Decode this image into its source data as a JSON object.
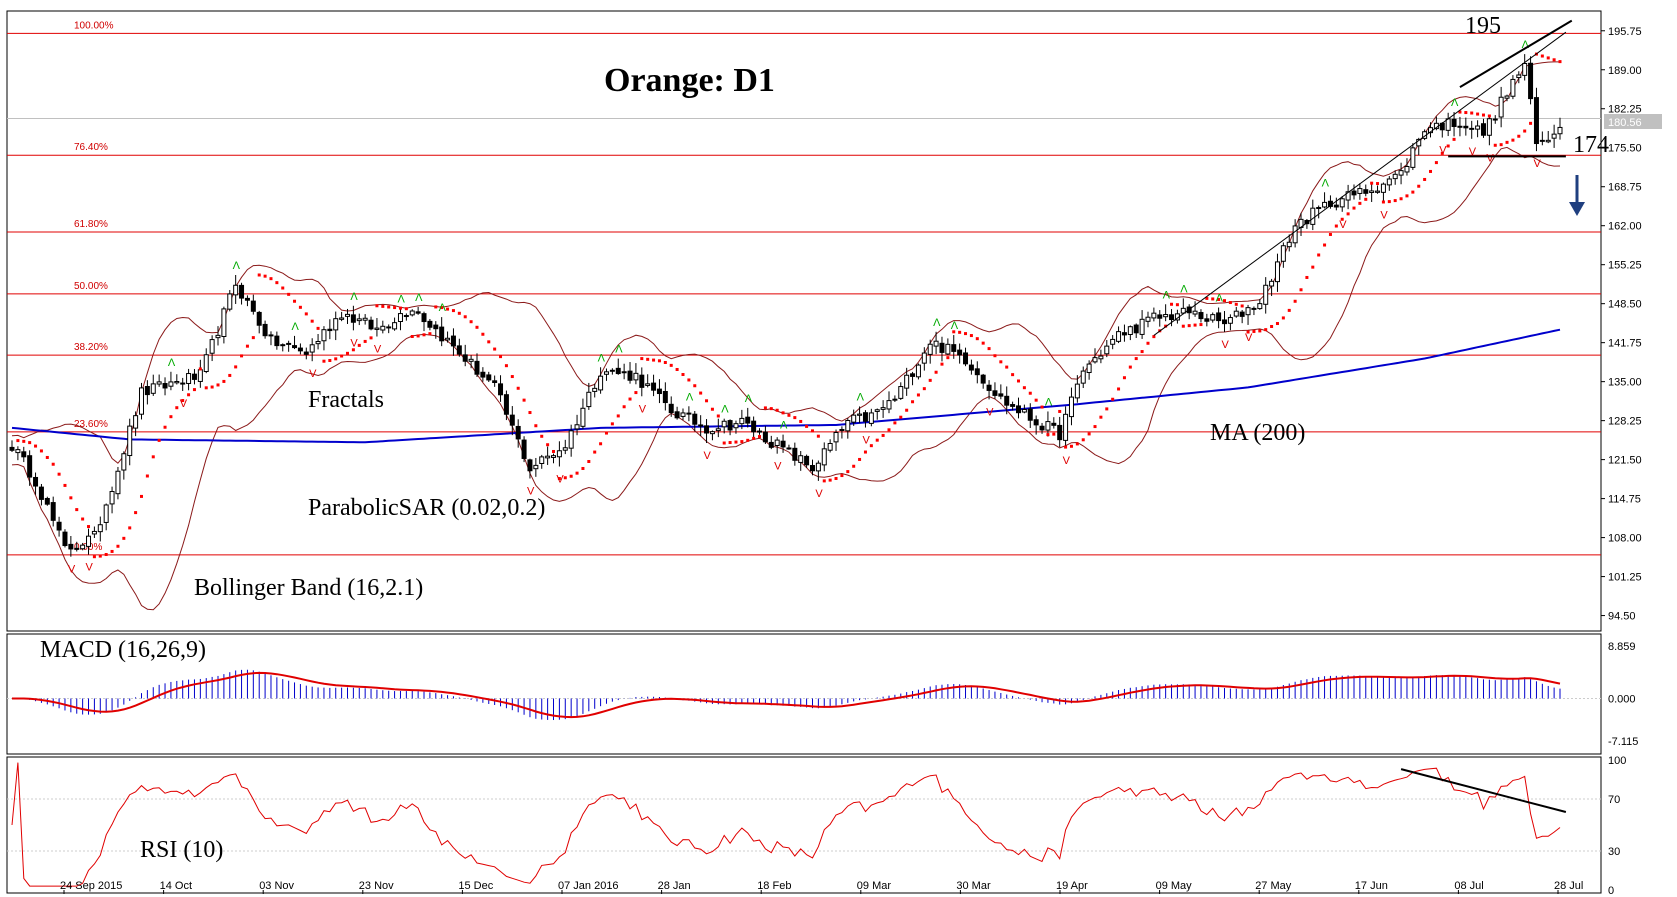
{
  "chart_data": {
    "type": "candlestick",
    "title": "Orange: D1",
    "main_panel": {
      "ylim": [
        92.0,
        199.0
      ],
      "y_ticks": [
        "195.75",
        "189.00",
        "182.25",
        "175.50",
        "168.75",
        "162.00",
        "155.25",
        "148.50",
        "141.75",
        "135.00",
        "128.25",
        "121.50",
        "114.75",
        "108.00",
        "101.25",
        "94.50"
      ],
      "current_price_label": "180.56",
      "current_price": 180.56,
      "fibonacci_levels": [
        {
          "label": "100.00%",
          "price": 195.3
        },
        {
          "label": "76.40%",
          "price": 174.2
        },
        {
          "label": "61.80%",
          "price": 160.9
        },
        {
          "label": "50.00%",
          "price": 150.2
        },
        {
          "label": "38.20%",
          "price": 139.6
        },
        {
          "label": "23.60%",
          "price": 126.3
        },
        {
          "label": "0.00%",
          "price": 105.0
        }
      ],
      "annotations": [
        {
          "text": "195",
          "role": "resistance label"
        },
        {
          "text": "174",
          "role": "support label"
        },
        {
          "text": "Fractals",
          "role": "indicator label"
        },
        {
          "text": "ParabolicSAR (0.02,0.2)",
          "role": "indicator label"
        },
        {
          "text": "Bollinger Band (16,2.1)",
          "role": "indicator label"
        },
        {
          "text": "MA (200)",
          "role": "indicator label"
        }
      ]
    },
    "x_ticks": [
      "24 Sep 2015",
      "14 Oct",
      "03 Nov",
      "23 Nov",
      "15 Dec",
      "07 Jan 2016",
      "28 Jan",
      "18 Feb",
      "09 Mar",
      "30 Mar",
      "19 Apr",
      "09 May",
      "27 May",
      "17 Jun",
      "08 Jul",
      "28 Jul"
    ],
    "close_anchors": [
      [
        0,
        124
      ],
      [
        4,
        118
      ],
      [
        9,
        106
      ],
      [
        14,
        108
      ],
      [
        18,
        120
      ],
      [
        22,
        133
      ],
      [
        28,
        135
      ],
      [
        32,
        136
      ],
      [
        38,
        152
      ],
      [
        44,
        142
      ],
      [
        50,
        140
      ],
      [
        56,
        147
      ],
      [
        62,
        144
      ],
      [
        68,
        148
      ],
      [
        74,
        142
      ],
      [
        82,
        134
      ],
      [
        88,
        120
      ],
      [
        94,
        124
      ],
      [
        100,
        137
      ],
      [
        106,
        136
      ],
      [
        112,
        130
      ],
      [
        118,
        127
      ],
      [
        124,
        128
      ],
      [
        130,
        124
      ],
      [
        136,
        120
      ],
      [
        142,
        128
      ],
      [
        146,
        129
      ],
      [
        150,
        132
      ],
      [
        156,
        142
      ],
      [
        162,
        139
      ],
      [
        168,
        132
      ],
      [
        174,
        128
      ],
      [
        178,
        126
      ],
      [
        182,
        137
      ],
      [
        188,
        143
      ],
      [
        194,
        146
      ],
      [
        200,
        147
      ],
      [
        206,
        145
      ],
      [
        212,
        149
      ],
      [
        218,
        162
      ],
      [
        224,
        166
      ],
      [
        230,
        168
      ],
      [
        236,
        171
      ],
      [
        240,
        179
      ],
      [
        246,
        180
      ],
      [
        250,
        178
      ],
      [
        254,
        185
      ],
      [
        257,
        190
      ],
      [
        259,
        176
      ],
      [
        261,
        177
      ],
      [
        263,
        180
      ]
    ],
    "ma200_anchors": [
      [
        0,
        127
      ],
      [
        20,
        125
      ],
      [
        60,
        124.5
      ],
      [
        100,
        127
      ],
      [
        140,
        127.5
      ],
      [
        180,
        131
      ],
      [
        210,
        134
      ],
      [
        240,
        139
      ],
      [
        263,
        144
      ]
    ],
    "parabolic_sar": {
      "step": 0.02,
      "max": 0.2
    },
    "bollinger": {
      "period": 16,
      "deviation": 2.1
    },
    "ma_period": 200,
    "macd_panel": {
      "label": "MACD (16,26,9)",
      "y_ticks": [
        "8.859",
        "0.000",
        "-7.115"
      ],
      "ylim": [
        -9.0,
        10.5
      ]
    },
    "rsi_panel": {
      "label": "RSI (10)",
      "y_ticks": [
        "100",
        "70",
        "30",
        "0"
      ],
      "ylim": [
        0,
        100
      ]
    },
    "colors": {
      "candle": "#000000",
      "fib": "#e00000",
      "ma": "#0000cc",
      "band": "#8b1a1a",
      "sar": "#ff0000",
      "fractal_up": "#00aa00",
      "fractal_down": "#dd0000",
      "macd_hist": "#0000cc",
      "macd_signal": "#e00000",
      "rsi": "#e00000",
      "arrow": "#1f3f7f"
    }
  }
}
